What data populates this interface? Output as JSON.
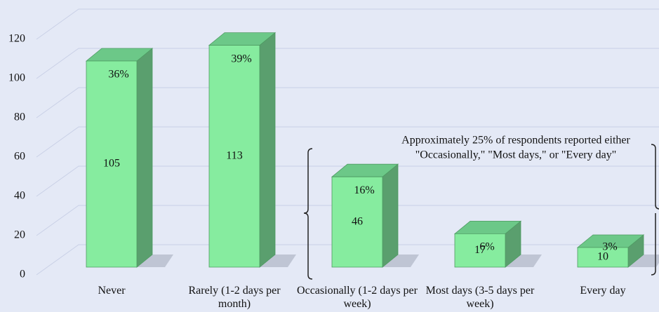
{
  "chart_data": {
    "type": "bar3d",
    "categories": [
      "Never",
      "Rarely (1-2 days per month)",
      "Occasionally (1-2 days per week)",
      "Most days (3-5 days per week)",
      "Every day"
    ],
    "values": [
      105,
      113,
      46,
      17,
      10
    ],
    "percent_labels": [
      "36%",
      "39%",
      "16%",
      "6%",
      "3%"
    ],
    "color": "#86ec9f",
    "ylim": [
      0,
      120
    ],
    "yticks": [
      0,
      20,
      40,
      60,
      80,
      100,
      120
    ],
    "grid": true,
    "annotation": [
      "Approximately 25% of respondents reported either",
      "\"Occasionally,\" \"Most days,\" or \"Every day\""
    ]
  }
}
